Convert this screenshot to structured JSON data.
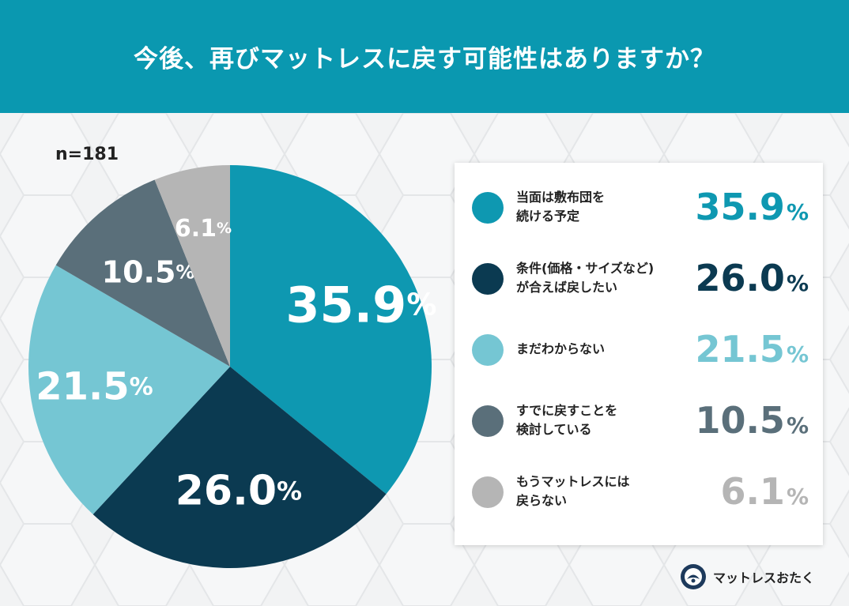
{
  "header": {
    "title": "今後、再びマットレスに戻す可能性はありますか？"
  },
  "sample_size": "n=181",
  "colors": {
    "header_bg": "#0a98b0",
    "teal": "#0e98b1",
    "navy": "#0b3a51",
    "light_teal": "#75c6d3",
    "slate": "#5a6f7a",
    "gray": "#b5b5b5"
  },
  "chart_data": {
    "type": "pie",
    "categories": [
      "当面は敷布団を続ける予定",
      "条件(価格・サイズなど)が合えば戻したい",
      "まだわからない",
      "すでに戻すことを検討している",
      "もうマットレスには戻らない"
    ],
    "values": [
      35.9,
      26.0,
      21.5,
      10.5,
      6.1
    ],
    "slice_labels": [
      "35.9",
      "26.0",
      "21.5",
      "10.5",
      "6.1"
    ],
    "unit": "%",
    "slice_colors": [
      "#0e98b1",
      "#0b3a51",
      "#75c6d3",
      "#5a6f7a",
      "#b5b5b5"
    ],
    "label_colors": [
      "#ffffff",
      "#ffffff",
      "#ffffff",
      "#ffffff",
      "#ffffff"
    ]
  },
  "legend": [
    {
      "lines": [
        "当面は敷布団を",
        "続ける予定"
      ],
      "value": "35.9",
      "unit": "%",
      "color": "#0e98b1"
    },
    {
      "lines": [
        "条件(価格・サイズなど)",
        "が合えば戻したい"
      ],
      "value": "26.0",
      "unit": "%",
      "color": "#0b3a51"
    },
    {
      "lines": [
        "まだわからない"
      ],
      "value": "21.5",
      "unit": "%",
      "color": "#75c6d3"
    },
    {
      "lines": [
        "すでに戻すことを",
        "検討している"
      ],
      "value": "10.5",
      "unit": "%",
      "color": "#5a6f7a"
    },
    {
      "lines": [
        "もうマットレスには",
        "戻らない"
      ],
      "value": "6.1",
      "unit": "%",
      "color": "#b5b5b5"
    }
  ],
  "brand": {
    "name": "マットレスおたく",
    "logo_icon": "mattress-otaku-logo-icon"
  }
}
